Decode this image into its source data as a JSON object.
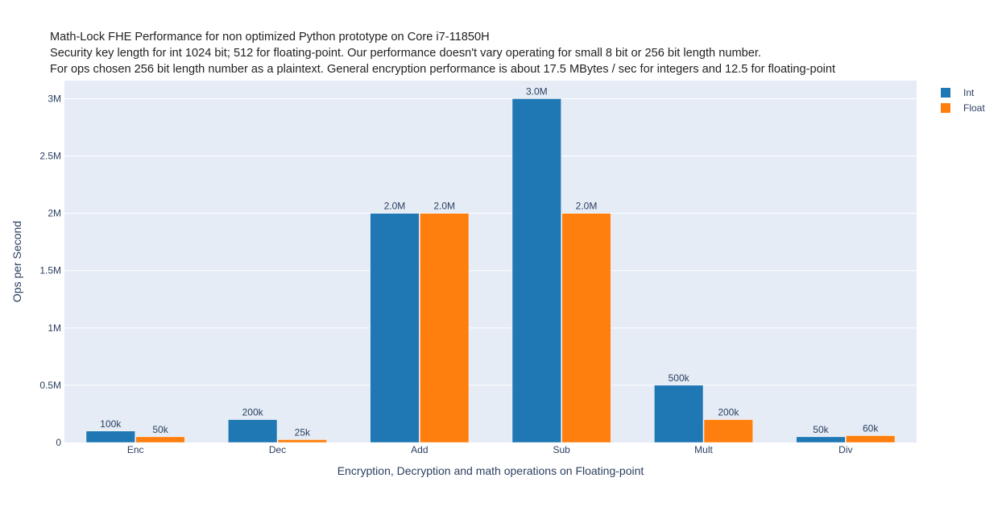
{
  "chart_data": {
    "type": "bar",
    "title_lines": [
      "Math-Lock FHE Performance for non optimized Python prototype on Core i7-11850H",
      "Security key length for int 1024 bit; 512 for floating-point. Our performance doesn't vary operating for small 8 bit or 256 bit length number.",
      "For ops chosen 256 bit length number as a plaintext. General encryption performance is about 17.5 MBytes / sec for integers and 12.5 for floating-point"
    ],
    "xlabel": "Encryption, Decryption and math operations on Floating-point",
    "ylabel": "Ops per Second",
    "categories": [
      "Enc",
      "Dec",
      "Add",
      "Sub",
      "Mult",
      "Div"
    ],
    "series": [
      {
        "name": "Int",
        "color": "#1f77b4",
        "values": [
          100000,
          200000,
          2000000,
          3000000,
          500000,
          50000
        ],
        "labels": [
          "100k",
          "200k",
          "2.0M",
          "3.0M",
          "500k",
          "50k"
        ]
      },
      {
        "name": "Float",
        "color": "#ff7f0e",
        "values": [
          50000,
          25000,
          2000000,
          2000000,
          200000,
          60000
        ],
        "labels": [
          "50k",
          "25k",
          "2.0M",
          "2.0M",
          "200k",
          "60k"
        ]
      }
    ],
    "yticks": [
      0,
      500000,
      1000000,
      1500000,
      2000000,
      2500000,
      3000000
    ],
    "ytick_labels": [
      "0",
      "0.5M",
      "1M",
      "1.5M",
      "2M",
      "2.5M",
      "3M"
    ],
    "ylim": [
      0,
      3157895
    ],
    "grid": true,
    "plot_bgcolor": "#e5ecf6",
    "legend_position": "top-right"
  }
}
